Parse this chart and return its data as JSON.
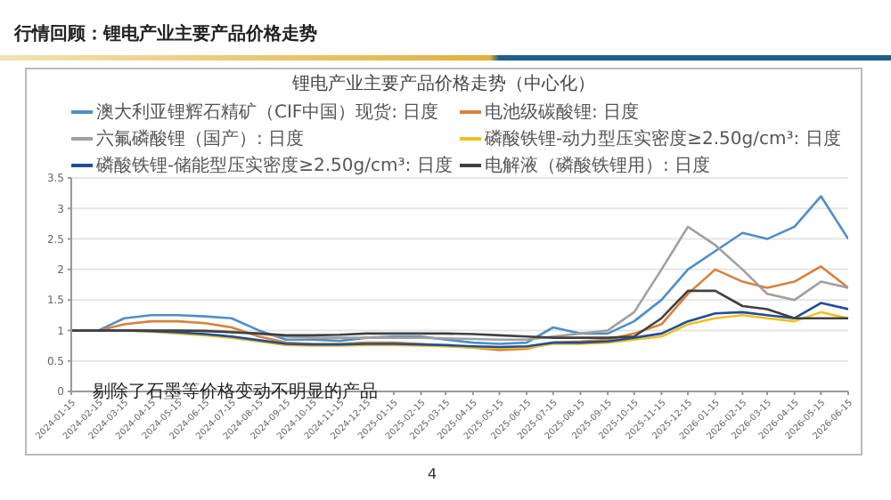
{
  "chart_data": {
    "type": "line",
    "title": "行情回顾：锂电产业主要产品价格走势",
    "subtitle": "锂电产业主要产品价格走势（中心化）",
    "annotations": [
      "剔除了石墨等价格变动不明显的产品",
      "4"
    ],
    "x": [
      "2024-01-15",
      "2024-02-15",
      "2024-03-15",
      "2024-04-15",
      "2024-05-15",
      "2024-06-15",
      "2024-07-15",
      "2024-08-15",
      "2024-09-15",
      "2024-10-15",
      "2024-11-15",
      "2024-12-15",
      "2025-01-15",
      "2025-02-15",
      "2025-03-15",
      "2025-04-15",
      "2025-05-15",
      "2025-06-15",
      "2025-07-15",
      "2025-08-15",
      "2025-09-15",
      "2025-10-15",
      "2025-11-15",
      "2025-12-15",
      "2026-01-15",
      "2026-02-15",
      "2026-03-15",
      "2026-04-15",
      "2026-05-15",
      "2026-06-15"
    ],
    "series": [
      {
        "name": "澳大利亚锂辉石精矿（CIF中国）现货: 日度",
        "color": "#4e8fc7",
        "values": [
          1,
          1,
          1.2,
          1.25,
          1.25,
          1.23,
          1.2,
          1.0,
          0.85,
          0.85,
          0.83,
          0.88,
          0.9,
          0.9,
          0.85,
          0.8,
          0.78,
          0.8,
          1.05,
          0.95,
          0.95,
          1.15,
          1.5,
          2.0,
          2.3,
          2.6,
          2.5,
          2.7,
          3.2,
          2.5
        ]
      },
      {
        "name": "电池级碳酸锂: 日度",
        "color": "#d8823a",
        "values": [
          1,
          1,
          1.1,
          1.15,
          1.15,
          1.12,
          1.05,
          0.9,
          0.8,
          0.78,
          0.78,
          0.8,
          0.8,
          0.78,
          0.75,
          0.72,
          0.68,
          0.7,
          0.8,
          0.82,
          0.85,
          0.95,
          1.1,
          1.6,
          2.0,
          1.8,
          1.7,
          1.8,
          2.05,
          1.7
        ]
      },
      {
        "name": "六氟磷酸锂（国产）: 日度",
        "color": "#a0a0a0",
        "values": [
          1,
          1,
          1,
          1,
          1,
          1,
          0.98,
          0.95,
          0.9,
          0.88,
          0.88,
          0.88,
          0.88,
          0.88,
          0.87,
          0.86,
          0.85,
          0.85,
          0.9,
          0.95,
          1.0,
          1.3,
          2.0,
          2.7,
          2.4,
          2.0,
          1.6,
          1.5,
          1.8,
          1.7
        ]
      },
      {
        "name": "磷酸铁锂-动力型压实密度≥2.50g/cm³: 日度",
        "color": "#f0c020",
        "values": [
          null,
          null,
          1,
          0.98,
          0.95,
          0.92,
          0.88,
          0.82,
          0.76,
          0.75,
          0.75,
          0.76,
          0.76,
          0.75,
          0.74,
          0.72,
          0.71,
          0.72,
          0.78,
          0.78,
          0.8,
          0.85,
          0.9,
          1.1,
          1.2,
          1.25,
          1.2,
          1.15,
          1.3,
          1.2
        ]
      },
      {
        "name": "磷酸铁锂-储能型压实密度≥2.50g/cm³: 日度",
        "color": "#1f4e9a",
        "values": [
          1,
          1,
          1,
          0.99,
          0.97,
          0.94,
          0.9,
          0.84,
          0.78,
          0.77,
          0.77,
          0.78,
          0.78,
          0.77,
          0.76,
          0.74,
          0.73,
          0.74,
          0.8,
          0.8,
          0.82,
          0.88,
          0.95,
          1.15,
          1.28,
          1.3,
          1.25,
          1.2,
          1.45,
          1.35
        ]
      },
      {
        "name": "电解液（磷酸铁锂用）: 日度",
        "color": "#404040",
        "values": [
          1,
          1,
          1,
          1,
          1,
          0.99,
          0.97,
          0.95,
          0.92,
          0.92,
          0.93,
          0.95,
          0.95,
          0.95,
          0.95,
          0.94,
          0.92,
          0.9,
          0.88,
          0.88,
          0.88,
          0.9,
          1.2,
          1.65,
          1.65,
          1.4,
          1.35,
          1.2,
          1.2,
          1.2
        ]
      }
    ],
    "xlim": [
      "2024-01-15",
      "2026-06-15"
    ],
    "xticks": [
      "2024-01-15",
      "2024-02-15",
      "2024-03-15",
      "2024-04-15",
      "2024-05-15",
      "2024-06-15",
      "2024-07-15",
      "2024-08-15",
      "2024-09-15",
      "2024-10-15",
      "2024-11-15",
      "2024-12-15",
      "2025-01-15",
      "2025-02-15",
      "2025-03-15",
      "2025-04-15",
      "2025-05-15",
      "2025-06-15",
      "2025-07-15",
      "2025-08-15",
      "2025-09-15",
      "2025-10-15",
      "2025-11-15",
      "2025-12-15",
      "2026-01-15",
      "2026-02-15",
      "2026-03-15",
      "2026-04-15",
      "2026-05-15",
      "2026-06-15"
    ],
    "ylim": [
      0,
      3.5
    ],
    "yticks": [
      0,
      0.5,
      1,
      1.5,
      2,
      2.5,
      3,
      3.5
    ],
    "grid": "y",
    "legend": "top left",
    "marker": "none",
    "line_style": "solid"
  }
}
